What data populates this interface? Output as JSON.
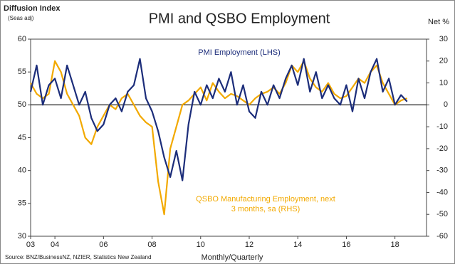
{
  "chart_data": {
    "type": "line",
    "title": "PMI and QSBO Employment",
    "y_label": "Diffusion Index",
    "y_sublabel": "(Seas adj)",
    "y2_label": "Net %",
    "x_label": "Monthly/Quarterly",
    "source": "Source: BNZ/BusinessNZ, NZIER, Statistics New Zealand",
    "x": [
      2003,
      2003.25,
      2003.5,
      2003.75,
      2004,
      2004.25,
      2004.5,
      2004.75,
      2005,
      2005.25,
      2005.5,
      2005.75,
      2006,
      2006.25,
      2006.5,
      2006.75,
      2007,
      2007.25,
      2007.5,
      2007.75,
      2008,
      2008.25,
      2008.5,
      2008.75,
      2009,
      2009.25,
      2009.5,
      2009.75,
      2010,
      2010.25,
      2010.5,
      2010.75,
      2011,
      2011.25,
      2011.5,
      2011.75,
      2012,
      2012.25,
      2012.5,
      2012.75,
      2013,
      2013.25,
      2013.5,
      2013.75,
      2014,
      2014.25,
      2014.5,
      2014.75,
      2015,
      2015.25,
      2015.5,
      2015.75,
      2016,
      2016.25,
      2016.5,
      2016.75,
      2017,
      2017.25,
      2017.5,
      2017.75,
      2018,
      2018.25,
      2018.5
    ],
    "series": [
      {
        "name": "PMI Employment (LHS)",
        "color": "#1c2d7a",
        "axis": "y",
        "values": [
          52,
          56,
          50,
          53,
          54,
          51,
          56,
          53,
          50,
          52,
          48,
          46,
          47,
          50,
          51,
          49,
          52,
          53,
          57,
          51,
          49,
          46,
          42,
          39,
          43,
          38.5,
          47,
          52,
          50,
          53,
          51,
          54,
          52,
          55,
          50,
          53,
          49,
          48,
          52,
          50,
          53,
          51,
          54,
          56,
          53,
          57,
          52,
          55,
          51,
          53,
          51,
          50,
          53,
          49,
          54,
          51,
          55,
          57,
          52,
          54,
          50,
          51.5,
          50.5
        ]
      },
      {
        "name": "QSBO Manufacturing  Employment, next 3 months, sa (RHS)",
        "color": "#f2a900",
        "axis": "y2",
        "values": [
          10,
          5,
          3,
          5,
          20,
          15,
          5,
          0,
          -5,
          -15,
          -18,
          -10,
          -5,
          0,
          -2,
          3,
          5,
          0,
          -5,
          -8,
          -10,
          -35,
          -50,
          -20,
          -10,
          0,
          2,
          5,
          8,
          2,
          10,
          6,
          3,
          5,
          4,
          2,
          0,
          3,
          5,
          6,
          8,
          5,
          10,
          18,
          15,
          20,
          12,
          8,
          6,
          10,
          5,
          3,
          4,
          8,
          12,
          10,
          15,
          18,
          10,
          5,
          0,
          2,
          3
        ]
      }
    ],
    "xlim": [
      2003,
      2019.3
    ],
    "xticks": [
      {
        "value": 2003,
        "label": "03"
      },
      {
        "value": 2004,
        "label": "04"
      },
      {
        "value": 2006,
        "label": "06"
      },
      {
        "value": 2008,
        "label": "08"
      },
      {
        "value": 2010,
        "label": "10"
      },
      {
        "value": 2012,
        "label": "12"
      },
      {
        "value": 2014,
        "label": "14"
      },
      {
        "value": 2016,
        "label": "16"
      },
      {
        "value": 2018,
        "label": "18"
      }
    ],
    "ylim": [
      30,
      60
    ],
    "yticks": [
      30,
      35,
      40,
      45,
      50,
      55,
      60
    ],
    "y2lim": [
      -60,
      30
    ],
    "y2ticks": [
      -60,
      -50,
      -40,
      -30,
      -20,
      -10,
      0,
      10,
      20,
      30
    ]
  }
}
